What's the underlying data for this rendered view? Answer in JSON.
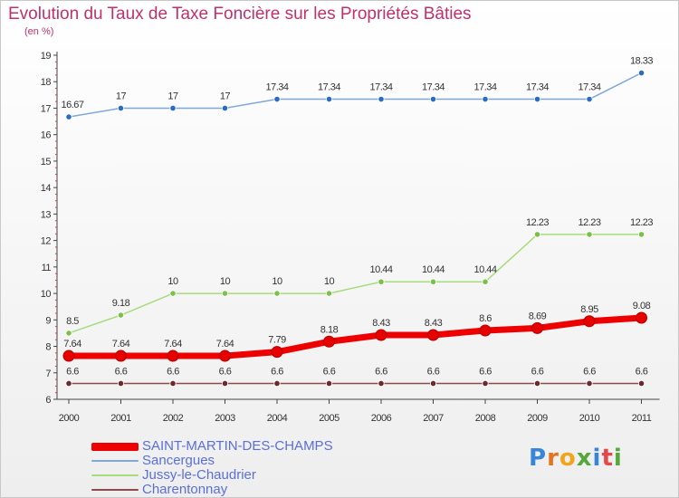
{
  "chart_data": {
    "type": "line",
    "title": "Evolution du Taux de Taxe Foncière sur les Propriétés Bâties",
    "subtitle": "(en %)",
    "xlabel": "",
    "ylabel": "",
    "x": [
      "2000",
      "2001",
      "2002",
      "2003",
      "2004",
      "2005",
      "2006",
      "2007",
      "2008",
      "2009",
      "2010",
      "2011"
    ],
    "ylim": [
      6,
      19
    ],
    "yticks": [
      6,
      7,
      8,
      9,
      10,
      11,
      12,
      13,
      14,
      15,
      16,
      17,
      18,
      19
    ],
    "grid": false,
    "legend_position": "bottom-left",
    "series": [
      {
        "name": "SAINT-MARTIN-DES-CHAMPS",
        "color": "#ee0000",
        "values": [
          7.64,
          7.64,
          7.64,
          7.64,
          7.79,
          8.18,
          8.43,
          8.43,
          8.6,
          8.69,
          8.95,
          9.08
        ],
        "labels": [
          "7.64",
          "7.64",
          "7.64",
          "7.64",
          "7.79",
          "8.18",
          "8.43",
          "8.43",
          "8.6",
          "8.69",
          "8.95",
          "9.08"
        ]
      },
      {
        "name": "Sancergues",
        "color": "#7fa8d8",
        "values": [
          16.67,
          17,
          17,
          17,
          17.34,
          17.34,
          17.34,
          17.34,
          17.34,
          17.34,
          17.34,
          18.33
        ],
        "labels": [
          "16.67",
          "17",
          "17",
          "17",
          "17.34",
          "17.34",
          "17.34",
          "17.34",
          "17.34",
          "17.34",
          "17.34",
          "18.33"
        ]
      },
      {
        "name": "Jussy-le-Chaudrier",
        "color": "#a6dc7c",
        "values": [
          8.5,
          9.18,
          10,
          10,
          10,
          10,
          10.44,
          10.44,
          10.44,
          12.23,
          12.23,
          12.23
        ],
        "labels": [
          "8.5",
          "9.18",
          "10",
          "10",
          "10",
          "10",
          "10.44",
          "10.44",
          "10.44",
          "12.23",
          "12.23",
          "12.23"
        ]
      },
      {
        "name": "Charentonnay",
        "color": "#8c4a4a",
        "values": [
          6.6,
          6.6,
          6.6,
          6.6,
          6.6,
          6.6,
          6.6,
          6.6,
          6.6,
          6.6,
          6.6,
          6.6
        ],
        "labels": [
          "6.6",
          "6.6",
          "6.6",
          "6.6",
          "6.6",
          "6.6",
          "6.6",
          "6.6",
          "6.6",
          "6.6",
          "6.6",
          "6.6"
        ]
      }
    ]
  }
}
